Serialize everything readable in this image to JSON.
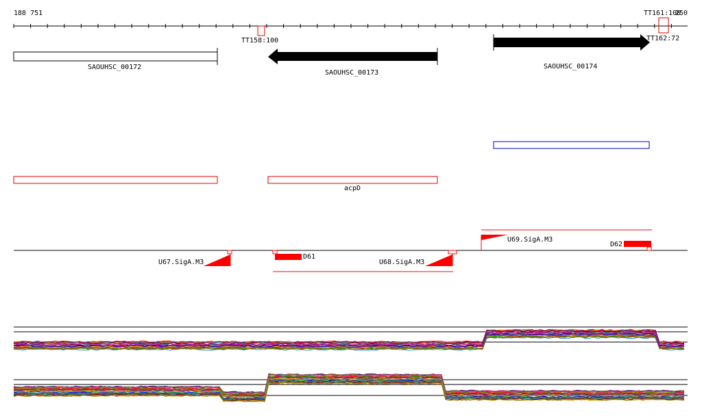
{
  "ruler": {
    "start_coord": "188 751",
    "end_coord": "TT161:100",
    "end_coord_extra": "250"
  },
  "terminators": [
    {
      "label": "TT158:100"
    },
    {
      "label": "TT162:72"
    }
  ],
  "genes": [
    {
      "name": "SAOUHSC_00172",
      "strand": "none",
      "style": "outline"
    },
    {
      "name": "SAOUHSC_00173",
      "strand": "-",
      "style": "filled"
    },
    {
      "name": "SAOUHSC_00174",
      "strand": "+",
      "style": "filled"
    }
  ],
  "annotations": [
    {
      "label": "acpD"
    }
  ],
  "promoters": [
    {
      "name": "U67.SigA.M3",
      "strand": "-"
    },
    {
      "name": "U68.SigA.M3",
      "strand": "-"
    },
    {
      "name": "U69.SigA.M3",
      "strand": "+"
    }
  ],
  "terminator_marks": [
    {
      "name": "D61",
      "strand": "-"
    },
    {
      "name": "D62",
      "strand": "+"
    }
  ],
  "colors": {
    "gene_fill": "#000000",
    "annotation_red": "#e00000",
    "annotation_blue": "#0000c0",
    "promoter_red": "#ff0000",
    "axis": "#000000"
  },
  "expression_tracks": [
    {
      "name": "expression-panel-top"
    },
    {
      "name": "expression-panel-bottom"
    }
  ]
}
